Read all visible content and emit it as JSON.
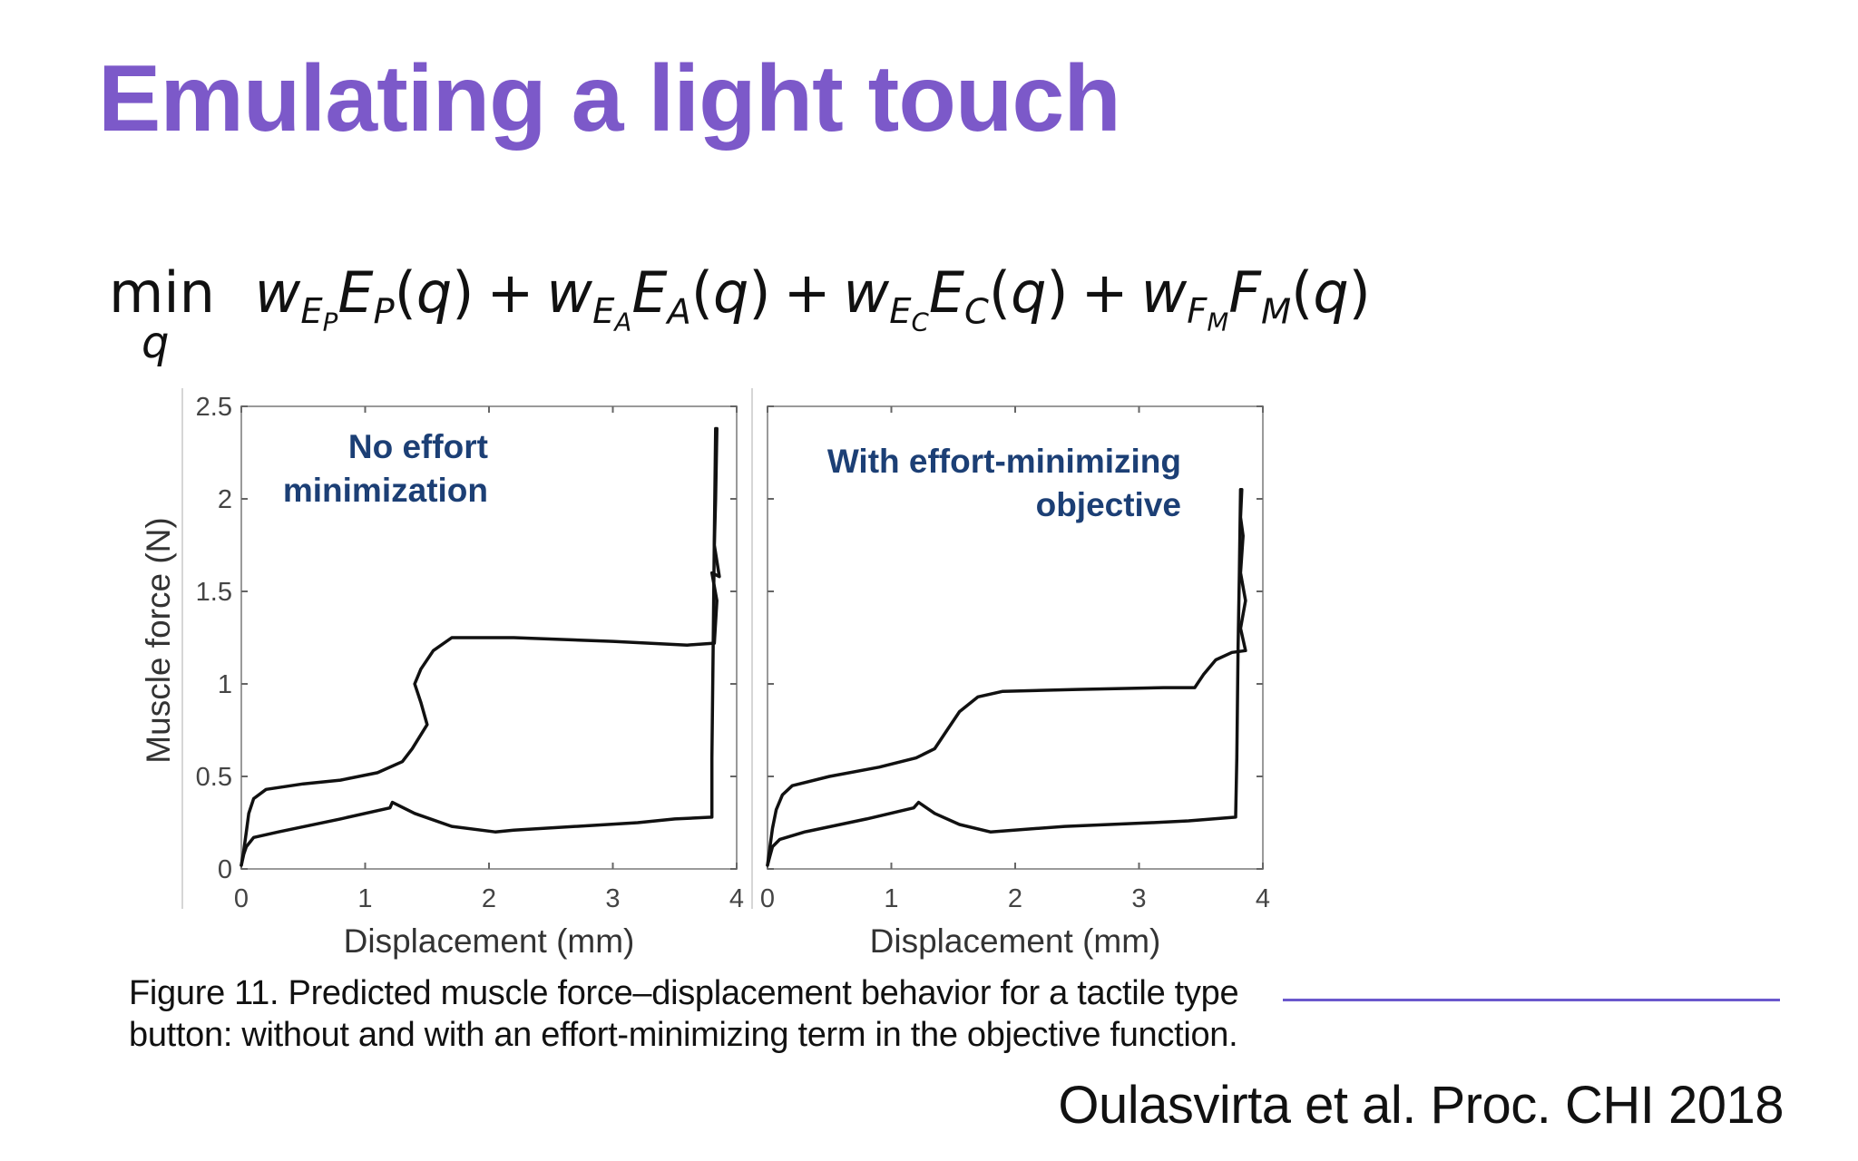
{
  "slide": {
    "title": "Emulating a light touch",
    "colors": {
      "title": "#7c59c9",
      "figure_label": "#1c3f75",
      "rule": "#6a58cc",
      "curve": "#111111"
    }
  },
  "equation": {
    "operator": "min",
    "operator_sub": "q",
    "terms": [
      {
        "weight": "w",
        "weight_sub": "E",
        "weight_subsub": "P",
        "func": "E",
        "func_sub": "P",
        "arg": "q"
      },
      {
        "weight": "w",
        "weight_sub": "E",
        "weight_subsub": "A",
        "func": "E",
        "func_sub": "A",
        "arg": "q"
      },
      {
        "weight": "w",
        "weight_sub": "E",
        "weight_subsub": "C",
        "func": "E",
        "func_sub": "C",
        "arg": "q"
      },
      {
        "weight": "w",
        "weight_sub": "F",
        "weight_subsub": "M",
        "func": "F",
        "func_sub": "M",
        "arg": "q"
      }
    ],
    "plus": "+"
  },
  "figure": {
    "ylabel": "Muscle force (N)",
    "chart_data": [
      {
        "type": "line",
        "annotation": [
          "No effort",
          "minimization"
        ],
        "xlabel": "Displacement (mm)",
        "ylabel": "Muscle force (N)",
        "xlim": [
          0,
          4
        ],
        "ylim": [
          0,
          2.5
        ],
        "xticks": [
          "0",
          "1",
          "2",
          "3",
          "4"
        ],
        "yticks": [
          "0",
          "0.5",
          "1",
          "1.5",
          "2",
          "2.5"
        ],
        "grid": false,
        "series": [
          {
            "points": [
              [
                0,
                0.02
              ],
              [
                0.02,
                0.1
              ],
              [
                0.04,
                0.2
              ],
              [
                0.06,
                0.3
              ],
              [
                0.1,
                0.38
              ],
              [
                0.2,
                0.43
              ],
              [
                0.5,
                0.46
              ],
              [
                0.8,
                0.48
              ],
              [
                1.1,
                0.52
              ],
              [
                1.3,
                0.58
              ],
              [
                1.38,
                0.65
              ],
              [
                1.5,
                0.78
              ],
              [
                1.45,
                0.9
              ],
              [
                1.4,
                1.0
              ],
              [
                1.45,
                1.08
              ],
              [
                1.55,
                1.18
              ],
              [
                1.7,
                1.25
              ],
              [
                2.2,
                1.25
              ],
              [
                3.0,
                1.23
              ],
              [
                3.6,
                1.21
              ],
              [
                3.82,
                1.22
              ],
              [
                3.84,
                1.45
              ],
              [
                3.8,
                1.6
              ],
              [
                3.86,
                1.58
              ],
              [
                3.82,
                1.75
              ],
              [
                3.83,
                2.0
              ],
              [
                3.84,
                2.38
              ]
            ]
          },
          {
            "points": [
              [
                3.83,
                2.38
              ],
              [
                3.82,
                1.8
              ],
              [
                3.81,
                1.2
              ],
              [
                3.8,
                0.6
              ],
              [
                3.8,
                0.28
              ],
              [
                3.5,
                0.27
              ],
              [
                3.2,
                0.25
              ],
              [
                2.2,
                0.21
              ],
              [
                2.05,
                0.2
              ],
              [
                1.7,
                0.23
              ],
              [
                1.4,
                0.3
              ],
              [
                1.22,
                0.36
              ],
              [
                1.2,
                0.33
              ],
              [
                0.8,
                0.27
              ],
              [
                0.3,
                0.2
              ],
              [
                0.1,
                0.17
              ],
              [
                0.04,
                0.12
              ],
              [
                0.02,
                0.08
              ],
              [
                0,
                0.02
              ]
            ]
          }
        ]
      },
      {
        "type": "line",
        "annotation": [
          "With effort-minimizing",
          "objective"
        ],
        "xlabel": "Displacement (mm)",
        "xlim": [
          0,
          4
        ],
        "ylim": [
          0,
          2.5
        ],
        "xticks": [
          "0",
          "1",
          "2",
          "3",
          "4"
        ],
        "grid": false,
        "series": [
          {
            "points": [
              [
                0,
                0.02
              ],
              [
                0.02,
                0.12
              ],
              [
                0.04,
                0.22
              ],
              [
                0.07,
                0.32
              ],
              [
                0.12,
                0.4
              ],
              [
                0.2,
                0.45
              ],
              [
                0.5,
                0.5
              ],
              [
                0.9,
                0.55
              ],
              [
                1.2,
                0.6
              ],
              [
                1.35,
                0.65
              ],
              [
                1.45,
                0.75
              ],
              [
                1.55,
                0.85
              ],
              [
                1.7,
                0.93
              ],
              [
                1.9,
                0.96
              ],
              [
                2.5,
                0.97
              ],
              [
                3.2,
                0.98
              ],
              [
                3.45,
                0.98
              ],
              [
                3.52,
                1.05
              ],
              [
                3.62,
                1.13
              ],
              [
                3.75,
                1.17
              ],
              [
                3.86,
                1.18
              ],
              [
                3.82,
                1.3
              ],
              [
                3.86,
                1.45
              ],
              [
                3.82,
                1.6
              ],
              [
                3.84,
                1.8
              ],
              [
                3.82,
                1.9
              ],
              [
                3.83,
                2.05
              ]
            ]
          },
          {
            "points": [
              [
                3.82,
                2.05
              ],
              [
                3.81,
                1.6
              ],
              [
                3.8,
                1.2
              ],
              [
                3.79,
                0.6
              ],
              [
                3.78,
                0.28
              ],
              [
                3.4,
                0.26
              ],
              [
                3.1,
                0.25
              ],
              [
                2.4,
                0.23
              ],
              [
                1.8,
                0.2
              ],
              [
                1.55,
                0.24
              ],
              [
                1.35,
                0.3
              ],
              [
                1.22,
                0.36
              ],
              [
                1.18,
                0.33
              ],
              [
                0.8,
                0.27
              ],
              [
                0.3,
                0.2
              ],
              [
                0.1,
                0.16
              ],
              [
                0.04,
                0.12
              ],
              [
                0.02,
                0.07
              ],
              [
                0,
                0.02
              ]
            ]
          }
        ]
      }
    ],
    "caption": "Figure 11. Predicted muscle force–displacement behavior for a tactile type button: without and with an effort-minimizing term in the objective function."
  },
  "citation": "Oulasvirta et al. Proc. CHI 2018"
}
